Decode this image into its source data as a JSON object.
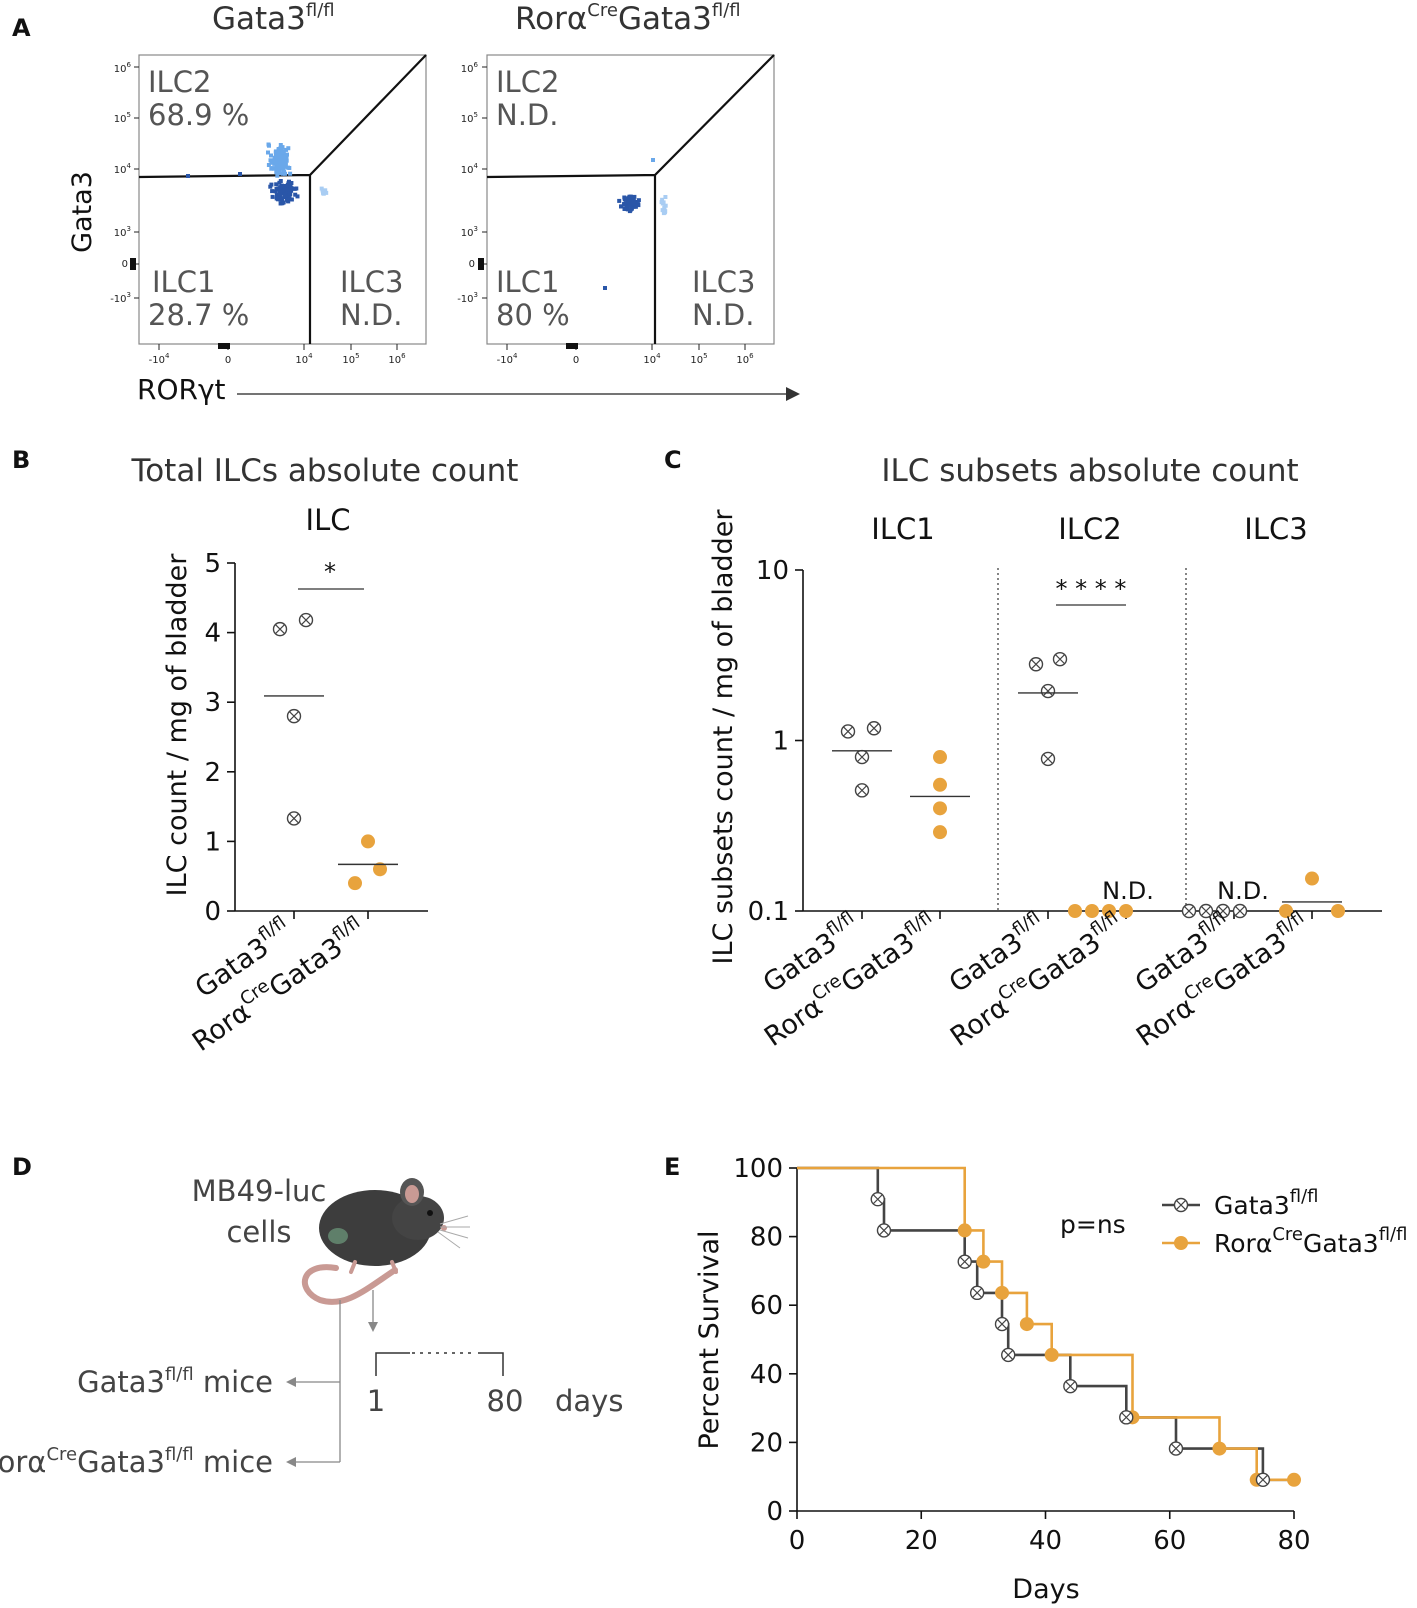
{
  "panels": {
    "a": {
      "letter": "A",
      "plots": [
        {
          "genotype_base": "Gata3",
          "genotype_sup": "fl/fl",
          "ilc2_label": "ILC2",
          "ilc2_value": "68.9 %",
          "ilc1_label": "ILC1",
          "ilc1_value": "28.7 %",
          "ilc3_label": "ILC3",
          "ilc3_value": "N.D."
        },
        {
          "genotype_pre": "Rorα",
          "genotype_cre": "Cre",
          "genotype_base": "Gata3",
          "genotype_sup": "fl/fl",
          "ilc2_label": "ILC2",
          "ilc2_value": "N.D.",
          "ilc1_label": "ILC1",
          "ilc1_value": "80 %",
          "ilc3_label": "ILC3",
          "ilc3_value": "N.D."
        }
      ],
      "y_axis_label": "Gata3",
      "x_axis_label": "RORγt",
      "y_ticks": [
        {
          "base": "10",
          "exp": "6"
        },
        {
          "base": "10",
          "exp": "5"
        },
        {
          "base": "10",
          "exp": "4"
        },
        {
          "base": "10",
          "exp": "3"
        },
        {
          "base": "0",
          "exp": ""
        },
        {
          "base": "-10",
          "exp": "3"
        }
      ],
      "x_ticks": [
        {
          "base": "-10",
          "exp": "4"
        },
        {
          "base": "0",
          "exp": ""
        },
        {
          "base": "10",
          "exp": "4"
        },
        {
          "base": "10",
          "exp": "5"
        },
        {
          "base": "10",
          "exp": "6"
        }
      ],
      "colors": {
        "ilc2": "#6aa8ea",
        "ilc1": "#2a56a8",
        "ilc3": "#a9cdf3",
        "gate": "#111111"
      }
    },
    "b": {
      "letter": "B",
      "title": "Total ILCs absolute count",
      "subtitle": "ILC",
      "ylabel": "ILC count / mg of bladder",
      "significance": "*"
    },
    "c": {
      "letter": "C",
      "title": "ILC subsets absolute count",
      "ylabel": "ILC subsets count / mg of bladder",
      "groups": [
        "ILC1",
        "ILC2",
        "ILC3"
      ],
      "significance": "* * * *",
      "nd_label": "N.D."
    },
    "d": {
      "letter": "D",
      "cells_line1": "MB49-luc",
      "cells_line2": "cells",
      "mice1_base": "Gata3",
      "mice1_sup": "fl/fl",
      "mice1_suffix": " mice",
      "mice2_pre": "Rorα",
      "mice2_cre": "Cre",
      "mice2_base": "Gata3",
      "mice2_sup": "fl/fl",
      "mice2_suffix": " mice",
      "timeline_start": "1",
      "timeline_end": "80",
      "timeline_unit": "days"
    },
    "e": {
      "letter": "E",
      "xlabel": "Days",
      "ylabel": "Percent Survival",
      "pvalue": "p=ns",
      "legend": [
        {
          "base": "Gata3",
          "sup": "fl/fl"
        },
        {
          "pre": "Rorα",
          "cre": "Cre",
          "base": "Gata3",
          "sup": "fl/fl"
        }
      ]
    }
  },
  "genotype_labels": {
    "wt_base": "Gata3",
    "wt_sup": "fl/fl",
    "ko_pre": "Rorα",
    "ko_cre": "Cre",
    "ko_base": "Gata3",
    "ko_sup": "fl/fl"
  },
  "colors": {
    "wt": "#444444",
    "ko": "#e8a33d",
    "axis": "#111111"
  },
  "chart_data": [
    {
      "id": "B",
      "type": "scatter",
      "title": "Total ILCs absolute count",
      "subtitle": "ILC",
      "xlabel": "",
      "ylabel": "ILC count / mg of bladder",
      "ylim": [
        0,
        5
      ],
      "yticks": [
        0,
        1,
        2,
        3,
        4,
        5
      ],
      "categories": [
        "Gata3 fl/fl",
        "RorαCre Gata3 fl/fl"
      ],
      "series": [
        {
          "name": "Gata3 fl/fl",
          "points": [
            4.05,
            4.18,
            2.8,
            1.33
          ],
          "mean": 3.09
        },
        {
          "name": "RorαCre Gata3 fl/fl",
          "points": [
            1.0,
            0.6,
            0.4
          ],
          "mean": 0.67
        }
      ],
      "annotation": "*"
    },
    {
      "id": "C",
      "type": "scatter",
      "title": "ILC subsets absolute count",
      "xlabel": "",
      "ylabel": "ILC subsets count / mg of bladder",
      "yscale": "log",
      "ylim": [
        0.1,
        10
      ],
      "yticks": [
        0.1,
        1,
        10
      ],
      "groups": [
        {
          "name": "ILC1",
          "series": [
            {
              "name": "Gata3 fl/fl",
              "points": [
                1.13,
                1.18,
                0.8,
                0.51
              ],
              "mean": 0.87
            },
            {
              "name": "RorαCre Gata3 fl/fl",
              "points": [
                0.8,
                0.55,
                0.4,
                0.29
              ],
              "mean": 0.47
            }
          ]
        },
        {
          "name": "ILC2",
          "series": [
            {
              "name": "Gata3 fl/fl",
              "points": [
                2.8,
                3.0,
                1.95,
                0.78
              ],
              "mean": 1.9
            },
            {
              "name": "RorαCre Gata3 fl/fl",
              "points": [
                0.1,
                0.1,
                0.1,
                0.1
              ],
              "not_detected": true
            }
          ],
          "annotation": "* * * *"
        },
        {
          "name": "ILC3",
          "series": [
            {
              "name": "Gata3 fl/fl",
              "points": [
                0.1,
                0.1,
                0.1,
                0.1
              ],
              "not_detected": true
            },
            {
              "name": "RorαCre Gata3 fl/fl",
              "points": [
                0.155,
                0.1,
                0.1
              ],
              "mean": 0.113
            }
          ]
        }
      ]
    },
    {
      "id": "E",
      "type": "line",
      "xlabel": "Days",
      "ylabel": "Percent Survival",
      "xlim": [
        0,
        80
      ],
      "xticks": [
        0,
        20,
        40,
        60,
        80
      ],
      "ylim": [
        0,
        100
      ],
      "yticks": [
        0,
        20,
        40,
        60,
        80,
        100
      ],
      "annotation": "p=ns",
      "series": [
        {
          "name": "Gata3 fl/fl",
          "steps": [
            [
              0,
              100
            ],
            [
              13,
              90.9
            ],
            [
              14,
              81.8
            ],
            [
              27,
              72.7
            ],
            [
              29,
              63.6
            ],
            [
              33,
              54.5
            ],
            [
              34,
              45.5
            ],
            [
              44,
              36.4
            ],
            [
              53,
              27.3
            ],
            [
              61,
              18.2
            ],
            [
              75,
              9.1
            ],
            [
              80,
              9.1
            ]
          ],
          "censor": [
            [
              13,
              90.9
            ],
            [
              14,
              81.8
            ],
            [
              27,
              72.7
            ],
            [
              29,
              63.6
            ],
            [
              33,
              54.5
            ],
            [
              34,
              45.5
            ],
            [
              44,
              36.4
            ],
            [
              53,
              27.3
            ],
            [
              61,
              18.2
            ],
            [
              75,
              9.1
            ]
          ]
        },
        {
          "name": "RorαCre Gata3 fl/fl",
          "steps": [
            [
              0,
              100
            ],
            [
              27,
              81.8
            ],
            [
              30,
              72.7
            ],
            [
              33,
              63.6
            ],
            [
              37,
              54.5
            ],
            [
              41,
              45.5
            ],
            [
              54,
              27.3
            ],
            [
              68,
              18.2
            ],
            [
              74,
              9.1
            ],
            [
              80,
              9.1
            ]
          ],
          "censor": [
            [
              27,
              81.8
            ],
            [
              30,
              72.7
            ],
            [
              33,
              63.6
            ],
            [
              37,
              54.5
            ],
            [
              41,
              45.5
            ],
            [
              54,
              27.3
            ],
            [
              68,
              18.2
            ],
            [
              74,
              9.1
            ],
            [
              80,
              9.1
            ]
          ]
        }
      ]
    }
  ]
}
